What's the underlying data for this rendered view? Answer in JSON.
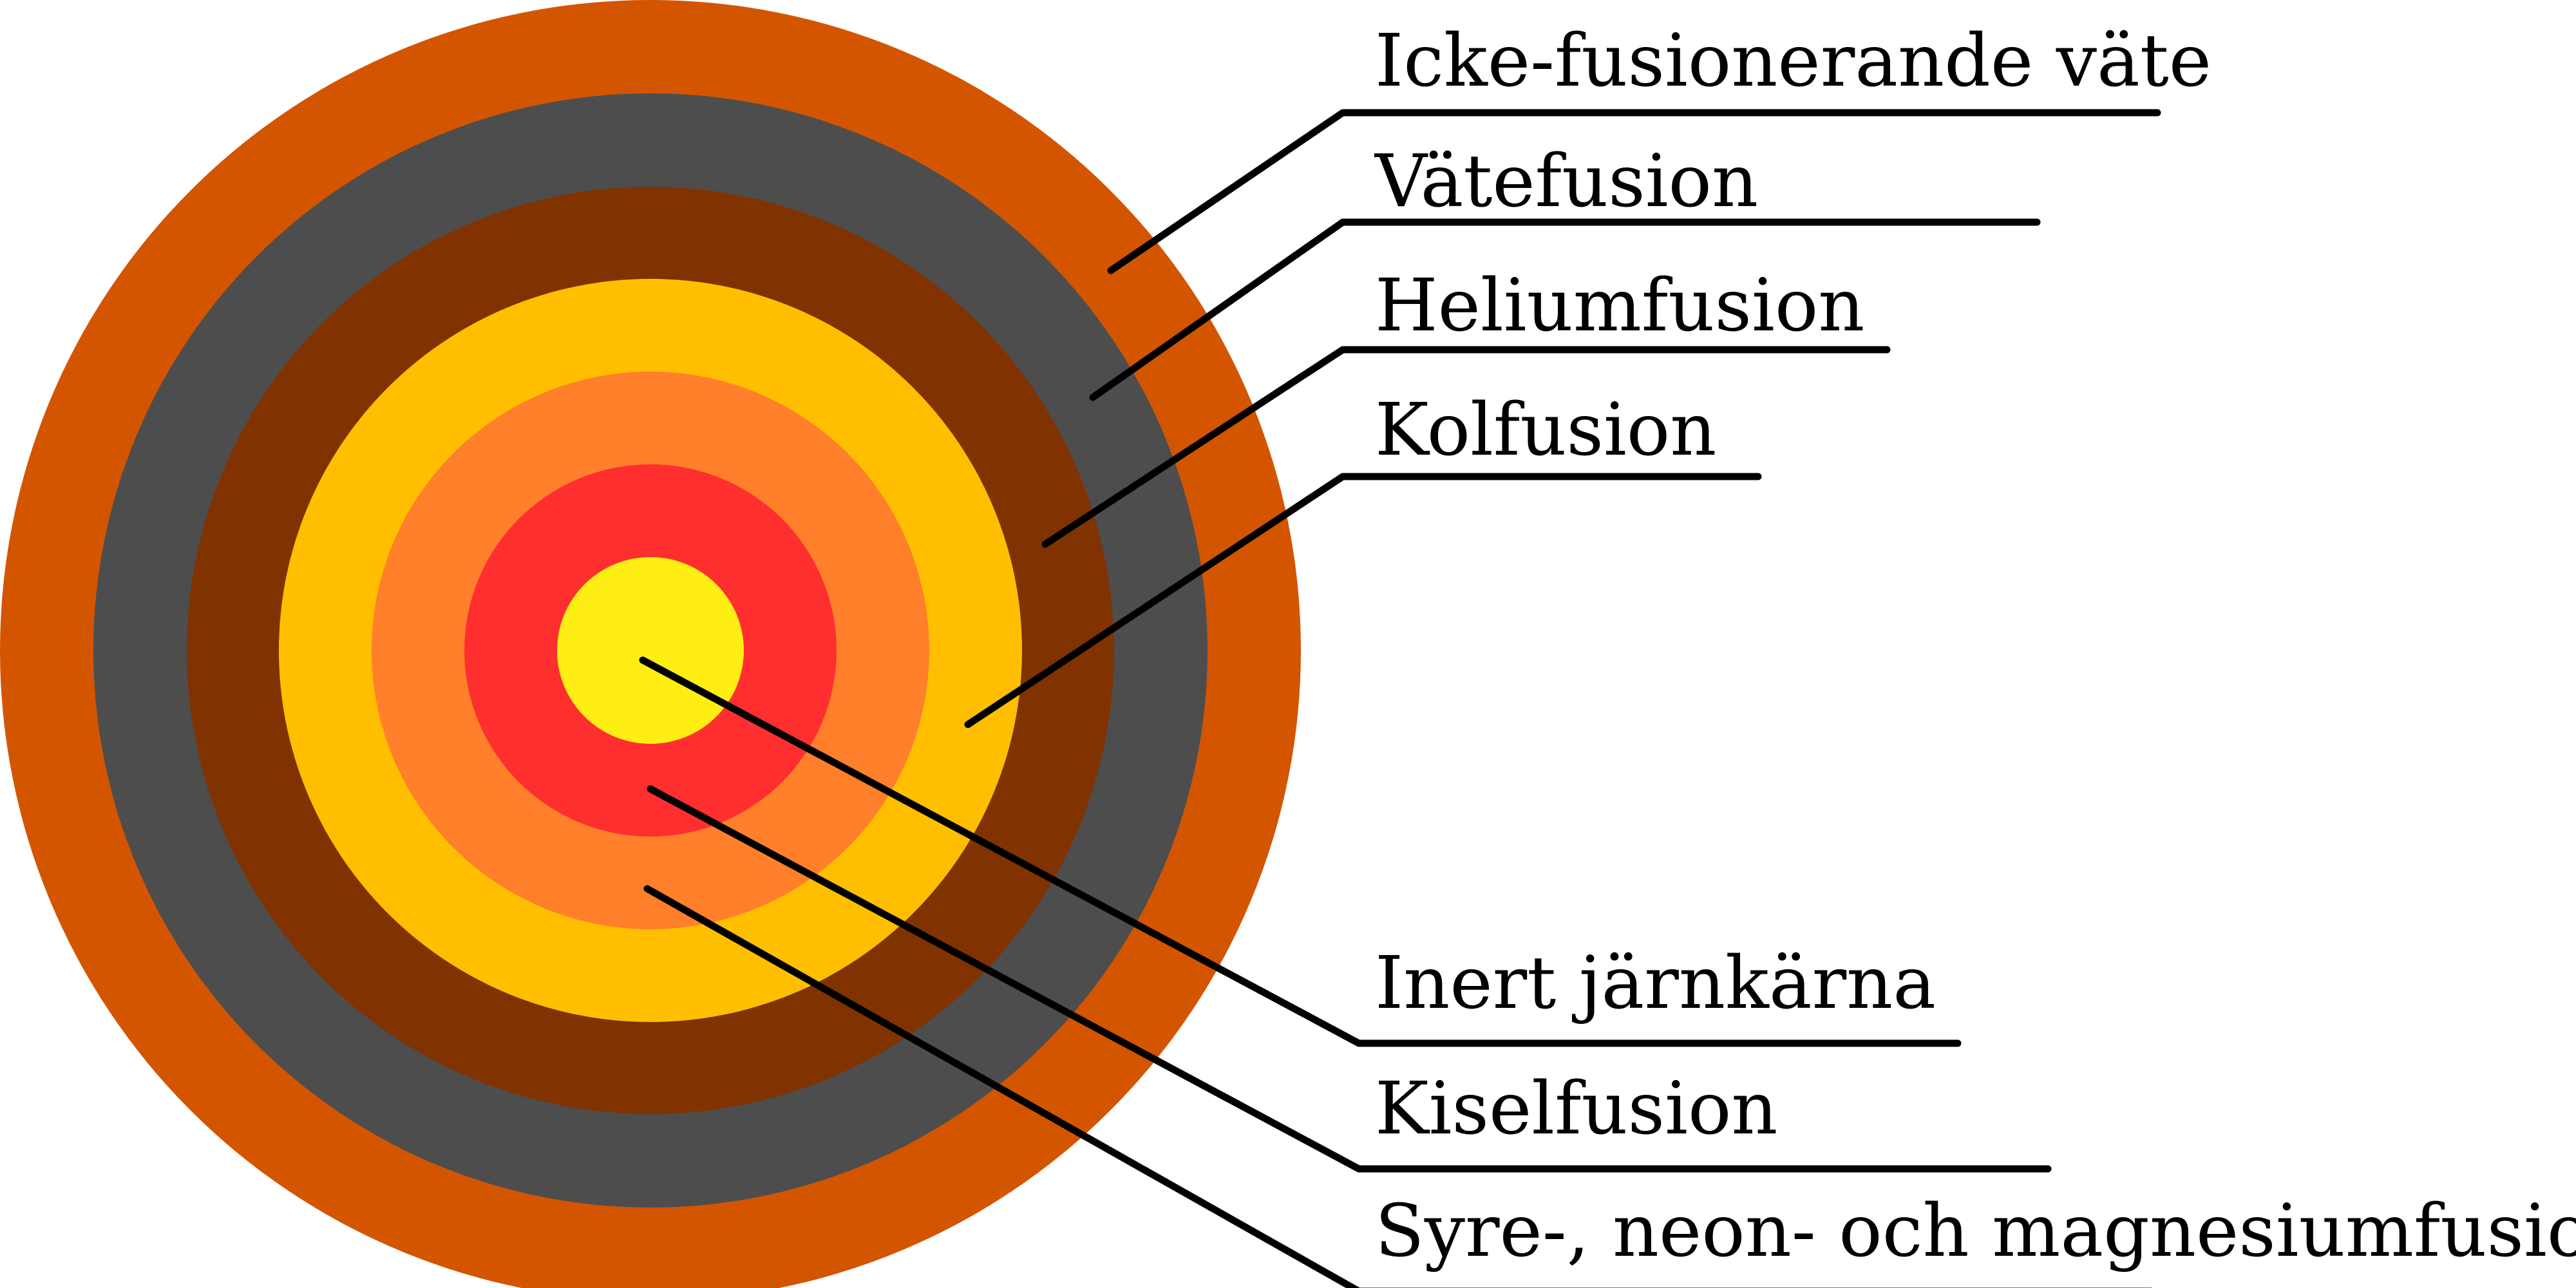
{
  "layers": [
    {
      "id": "non-fusing-hydrogen",
      "label": "Icke-fusionerande väte",
      "color": "#D45500"
    },
    {
      "id": "hydrogen-fusion",
      "label": "Vätefusion",
      "color": "#4D4D4D"
    },
    {
      "id": "helium-fusion",
      "label": "Heliumfusion",
      "color": "#803300"
    },
    {
      "id": "carbon-fusion",
      "label": "Kolfusion",
      "color": "#FFBF00"
    },
    {
      "id": "oxygen-neon-magnesium-fusion",
      "label": "Syre-, neon- och magnesiumfusion",
      "color": "#FF7F2A"
    },
    {
      "id": "silicon-fusion",
      "label": "Kiselfusion",
      "color": "#FF2F2F"
    },
    {
      "id": "inert-iron-core",
      "label": "Inert järnkärna",
      "color": "#FFEE14"
    }
  ]
}
